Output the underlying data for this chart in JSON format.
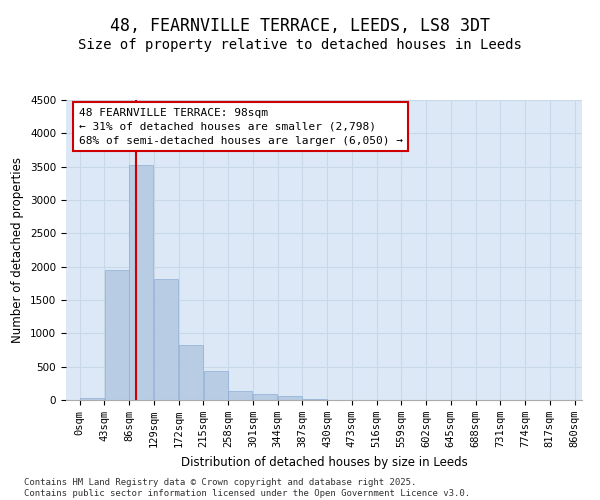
{
  "title": "48, FEARNVILLE TERRACE, LEEDS, LS8 3DT",
  "subtitle": "Size of property relative to detached houses in Leeds",
  "xlabel": "Distribution of detached houses by size in Leeds",
  "ylabel": "Number of detached properties",
  "bin_labels": [
    "0sqm",
    "43sqm",
    "86sqm",
    "129sqm",
    "172sqm",
    "215sqm",
    "258sqm",
    "301sqm",
    "344sqm",
    "387sqm",
    "430sqm",
    "473sqm",
    "516sqm",
    "559sqm",
    "602sqm",
    "645sqm",
    "688sqm",
    "731sqm",
    "774sqm",
    "817sqm",
    "860sqm"
  ],
  "bar_values": [
    30,
    1950,
    3520,
    1820,
    830,
    430,
    130,
    90,
    65,
    10,
    0,
    0,
    0,
    0,
    0,
    0,
    0,
    0,
    0,
    0
  ],
  "bar_color": "#b8cce4",
  "bar_edge_color": "#8eadd4",
  "grid_color": "#c8d8e8",
  "background_color": "#dce8f5",
  "vline_color": "#cc0000",
  "annotation_text": "48 FEARNVILLE TERRACE: 98sqm\n← 31% of detached houses are smaller (2,798)\n68% of semi-detached houses are larger (6,050) →",
  "annotation_box_color": "#ffffff",
  "annotation_box_edge": "#cc0000",
  "footer_text": "Contains HM Land Registry data © Crown copyright and database right 2025.\nContains public sector information licensed under the Open Government Licence v3.0.",
  "ylim": [
    0,
    4500
  ],
  "yticks": [
    0,
    500,
    1000,
    1500,
    2000,
    2500,
    3000,
    3500,
    4000,
    4500
  ],
  "bin_width": 43,
  "property_sqm": 98,
  "title_fontsize": 12,
  "subtitle_fontsize": 10,
  "axis_label_fontsize": 8.5,
  "tick_fontsize": 7.5,
  "annotation_fontsize": 8,
  "footer_fontsize": 6.5
}
